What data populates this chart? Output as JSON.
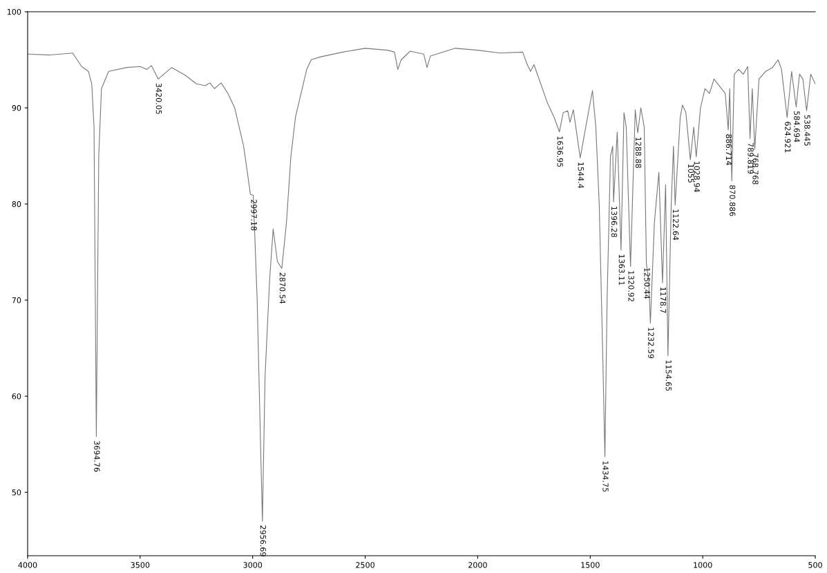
{
  "chart_data": {
    "type": "line",
    "xlim": [
      4000,
      500
    ],
    "ylim": [
      43.4,
      100
    ],
    "xticks": [
      4000,
      3500,
      3000,
      2500,
      2000,
      1500,
      1000,
      500
    ],
    "yticks": [
      50,
      60,
      70,
      80,
      90,
      100
    ],
    "grid": false,
    "legend": false,
    "marker": "none",
    "line_style": "solid",
    "series": [
      {
        "color": "#777777",
        "x": [
          4000,
          3900,
          3800,
          3760,
          3730,
          3715,
          3705,
          3694.76,
          3684,
          3672,
          3640,
          3560,
          3500,
          3470,
          3450,
          3420.05,
          3360,
          3300,
          3250,
          3210,
          3190,
          3170,
          3140,
          3110,
          3080,
          3040,
          3010,
          2997.18,
          2980,
          2965,
          2956.69,
          2945,
          2925,
          2909,
          2890,
          2870.54,
          2850,
          2830,
          2810,
          2790,
          2760,
          2740,
          2700,
          2600,
          2500,
          2400,
          2370,
          2355,
          2340,
          2300,
          2240,
          2225,
          2210,
          2100,
          2000,
          1900,
          1800,
          1780,
          1765,
          1750,
          1720,
          1690,
          1660,
          1636.95,
          1620,
          1600,
          1590,
          1575,
          1544.4,
          1520,
          1490,
          1475,
          1460,
          1445,
          1434.75,
          1425,
          1410,
          1400,
          1396.28,
          1380,
          1363.11,
          1350,
          1340,
          1320.92,
          1300,
          1288.88,
          1275,
          1260,
          1250.44,
          1240,
          1232.59,
          1215,
          1195,
          1178.7,
          1165,
          1154.65,
          1140,
          1130,
          1122.64,
          1100,
          1090,
          1075,
          1055,
          1040,
          1028.94,
          1010,
          990,
          970,
          950,
          930,
          900,
          886.714,
          880,
          870.886,
          860,
          840,
          820,
          800,
          789.819,
          780,
          768.768,
          750,
          720,
          690,
          665,
          650,
          624.921,
          605,
          590,
          584.694,
          570,
          555,
          538.445,
          520,
          500
        ],
        "values": [
          95.6,
          95.5,
          95.7,
          94.3,
          93.8,
          92.5,
          88,
          55.8,
          85,
          92,
          93.8,
          94.2,
          94.3,
          94.0,
          94.4,
          93.0,
          94.2,
          93.4,
          92.5,
          92.3,
          92.6,
          92.0,
          92.6,
          91.5,
          90,
          86,
          81,
          80.9,
          70,
          55,
          47,
          62,
          72,
          77.4,
          74,
          73.3,
          78,
          85,
          89,
          91,
          94,
          95,
          95.3,
          95.8,
          96.2,
          96.0,
          95.8,
          94,
          95,
          95.9,
          95.6,
          94.2,
          95.4,
          96.2,
          96.0,
          95.7,
          95.8,
          94.5,
          93.8,
          94.5,
          92.5,
          90.5,
          89,
          87.5,
          89.5,
          89.7,
          88.5,
          89.8,
          84.8,
          88,
          91.8,
          88,
          80,
          65,
          53.7,
          70,
          85,
          86,
          80.2,
          87.5,
          75.2,
          89.5,
          88,
          73.5,
          89.8,
          87.4,
          90,
          88,
          73.8,
          72,
          67.6,
          78,
          83.3,
          71.8,
          82,
          64.2,
          80,
          86,
          79.9,
          89,
          90.3,
          89.5,
          84.6,
          88,
          84.9,
          90,
          92,
          91.5,
          93,
          92.4,
          91.5,
          87.7,
          92,
          82.4,
          93.5,
          94,
          93.5,
          94.3,
          86.8,
          92,
          85.7,
          93,
          93.8,
          94.2,
          95.0,
          94,
          89.0,
          93.8,
          91,
          90.1,
          93.5,
          93,
          89.7,
          93.5,
          92.5
        ]
      }
    ],
    "annotations": [
      {
        "text": "3694.76",
        "x": 3694.76,
        "y": 55.8
      },
      {
        "text": "3420.05",
        "x": 3420.05,
        "y": 93.0
      },
      {
        "text": "2997.18",
        "x": 2997.18,
        "y": 80.9
      },
      {
        "text": "2956.69",
        "x": 2956.69,
        "y": 47
      },
      {
        "text": "2870.54",
        "x": 2870.54,
        "y": 73.3
      },
      {
        "text": "1636.95",
        "x": 1636.95,
        "y": 87.5
      },
      {
        "text": "1544.4",
        "x": 1544.4,
        "y": 84.8
      },
      {
        "text": "1434.75",
        "x": 1434.75,
        "y": 53.7
      },
      {
        "text": "1396.28",
        "x": 1396.28,
        "y": 80.2
      },
      {
        "text": "1363.11",
        "x": 1363.11,
        "y": 75.2
      },
      {
        "text": "1320.92",
        "x": 1320.92,
        "y": 73.5
      },
      {
        "text": "1288.88",
        "x": 1288.88,
        "y": 87.4
      },
      {
        "text": "1250.44",
        "x": 1250.44,
        "y": 73.8
      },
      {
        "text": "1232.59",
        "x": 1232.59,
        "y": 67.6
      },
      {
        "text": "1178.7",
        "x": 1178.7,
        "y": 71.8
      },
      {
        "text": "1154.65",
        "x": 1154.65,
        "y": 64.2
      },
      {
        "text": "1122.64",
        "x": 1122.64,
        "y": 79.9
      },
      {
        "text": "1055",
        "x": 1055,
        "y": 84.6
      },
      {
        "text": "1028.94",
        "x": 1028.94,
        "y": 84.9
      },
      {
        "text": "886.714",
        "x": 886.714,
        "y": 87.7
      },
      {
        "text": "870.886",
        "x": 870.886,
        "y": 82.4
      },
      {
        "text": "789.819",
        "x": 789.819,
        "y": 86.8
      },
      {
        "text": "768.768",
        "x": 768.768,
        "y": 85.7
      },
      {
        "text": "624.921",
        "x": 624.921,
        "y": 89.0
      },
      {
        "text": "584.694",
        "x": 584.694,
        "y": 90.1
      },
      {
        "text": "538.445",
        "x": 538.445,
        "y": 89.7
      }
    ]
  }
}
